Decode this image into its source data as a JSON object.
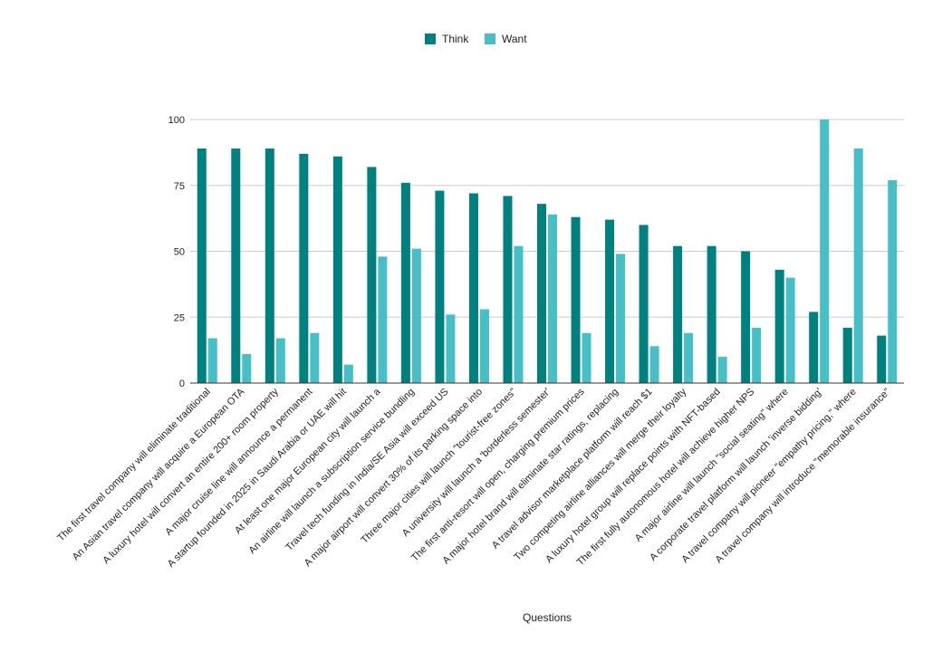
{
  "chart_data": {
    "type": "bar",
    "xlabel": "Questions",
    "ylabel": "",
    "ylim": [
      0,
      100
    ],
    "yticks": [
      0,
      25,
      50,
      75,
      100
    ],
    "grid": true,
    "legend_position": "top-center",
    "categories": [
      "The first travel company will eliminate traditional",
      "An Asian travel company will acquire a European OTA",
      "A luxury hotel will convert an entire 200+ room property",
      "A major cruise line will announce a permanent",
      "A startup founded in 2025 in Saudi Arabia or UAE will hit",
      "At least one major European city will launch a",
      "An airline will launch a subscription service bundling",
      "Travel tech funding in India/SE Asia will exceed US",
      "A major airport will convert 30% of its parking space into",
      "Three major cities will launch \"tourist-free zones\"",
      "A university will launch a 'borderless semester'",
      "The first anti-resort will open, charging premium prices",
      "A major hotel brand will eliminate star ratings, replacing",
      "A travel advisor marketplace platform will reach $1",
      "Two competing airline alliances will merge their loyalty",
      "A luxury hotel group will replace points with NFT-based",
      "The first fully autonomous hotel will achieve higher NPS",
      "A major airline will launch \"social seating\" where",
      "A corporate travel platform will launch 'inverse bidding'",
      "A travel company will pioneer \"empathy pricing,\" where",
      "A travel company will introduce \"memorable insurance\""
    ],
    "series": [
      {
        "name": "Think",
        "color": "#00807f",
        "values": [
          89,
          89,
          89,
          87,
          86,
          82,
          76,
          73,
          72,
          71,
          68,
          63,
          62,
          60,
          52,
          52,
          50,
          43,
          27,
          21,
          18
        ]
      },
      {
        "name": "Want",
        "color": "#48bec6",
        "values": [
          17,
          11,
          17,
          19,
          7,
          48,
          51,
          26,
          28,
          52,
          64,
          19,
          49,
          14,
          19,
          10,
          21,
          40,
          100,
          89,
          77
        ]
      }
    ]
  }
}
